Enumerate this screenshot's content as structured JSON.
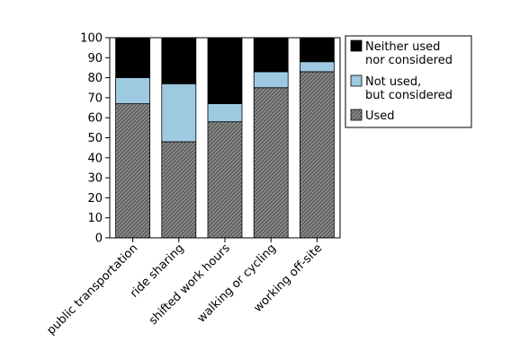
{
  "chart_data": {
    "type": "bar",
    "stacked": true,
    "categories": [
      "public transportation",
      "ride sharing",
      "shifted work hours",
      "walking or cycling",
      "working off-site"
    ],
    "series": [
      {
        "name": "Used",
        "values": [
          67,
          48,
          58,
          75,
          83
        ],
        "color": "#6b6b6b",
        "pattern": "hatched"
      },
      {
        "name": "Not used, but considered",
        "values": [
          13,
          29,
          9,
          8,
          5
        ],
        "color": "#9ecae1"
      },
      {
        "name": "Neither used nor considered",
        "values": [
          20,
          23,
          33,
          17,
          12
        ],
        "color": "#000000"
      }
    ],
    "yticks": [
      0,
      10,
      20,
      30,
      40,
      50,
      60,
      70,
      80,
      90,
      100
    ],
    "ylim": [
      0,
      100
    ],
    "legend": {
      "position": "right",
      "entries": [
        {
          "series": "Neither used nor considered",
          "lines": [
            "Neither used",
            "nor considered"
          ]
        },
        {
          "series": "Not used, but considered",
          "lines": [
            "Not used,",
            "but considered"
          ]
        },
        {
          "series": "Used",
          "lines": [
            "Used"
          ]
        }
      ]
    },
    "grid": false
  }
}
